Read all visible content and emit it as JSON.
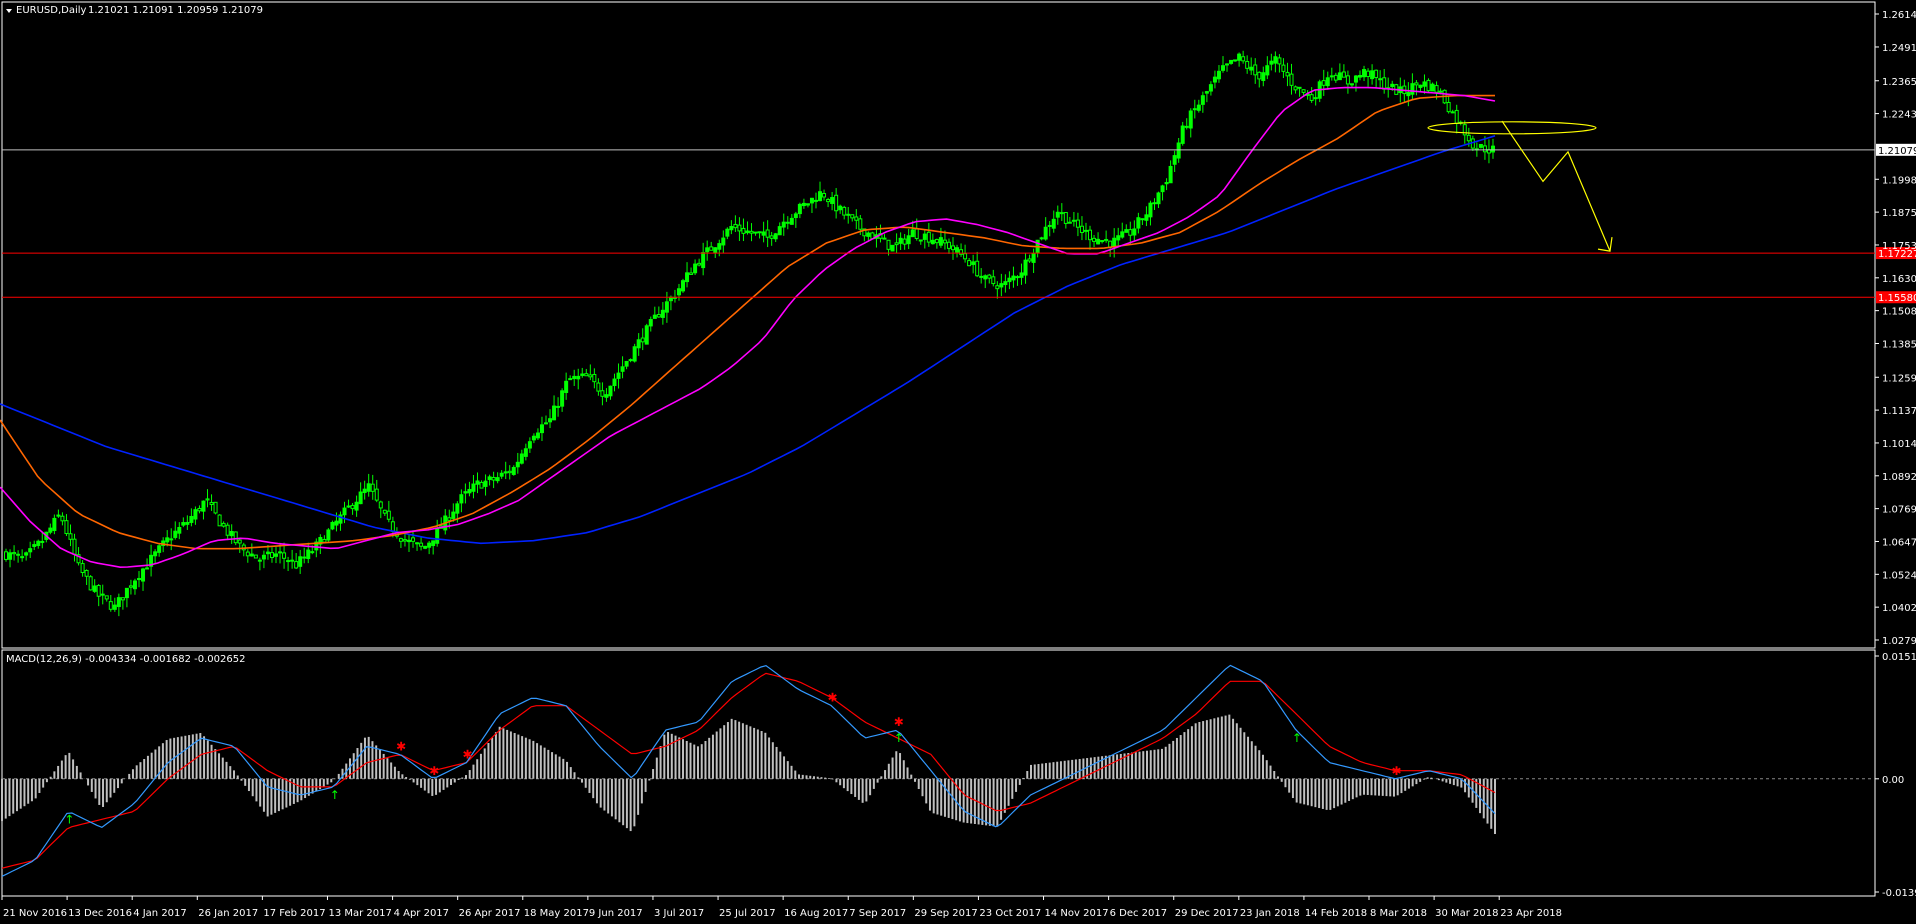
{
  "window": {
    "title": "EURUSD,Daily",
    "ohlc": "1.21021 1.21091 1.20959 1.21079"
  },
  "colors": {
    "background": "#000000",
    "frame": "#ffffff",
    "bull_candle": "#00ff00",
    "bear_candle": "#000000",
    "ma_fast": "#ff00ff",
    "ma_mid": "#ff6600",
    "ma_slow": "#0022ff",
    "horizontal_level": "#ff0000",
    "current_price_line": "#c0c0c0",
    "annotation": "#ffff00",
    "macd_line": "#3399ff",
    "signal_line": "#ff0000",
    "histogram": "#c0c0c0",
    "buy_arrow": "#00ff00",
    "sell_arrow": "#ff0000"
  },
  "chart_data": [
    {
      "type": "candlestick",
      "title": "EURUSD,Daily",
      "ylim": [
        1.02795,
        1.26145
      ],
      "y_ticks": [
        "1.26145",
        "1.24915",
        "1.23655",
        "1.22430",
        "1.19980",
        "1.18755",
        "1.17530",
        "1.16305",
        "1.15080",
        "1.13855",
        "1.12595",
        "1.11370",
        "1.10145",
        "1.08920",
        "1.07695",
        "1.06470",
        "1.05245",
        "1.04020",
        "1.02795"
      ],
      "x_ticks": [
        "21 Nov 2016",
        "13 Dec 2016",
        "4 Jan 2017",
        "26 Jan 2017",
        "17 Feb 2017",
        "13 Mar 2017",
        "4 Apr 2017",
        "26 Apr 2017",
        "18 May 2017",
        "9 Jun 2017",
        "3 Jul 2017",
        "25 Jul 2017",
        "16 Aug 2017",
        "7 Sep 2017",
        "29 Sep 2017",
        "23 Oct 2017",
        "14 Nov 2017",
        "6 Dec 2017",
        "29 Dec 2017",
        "23 Jan 2018",
        "14 Feb 2018",
        "8 Mar 2018",
        "30 Mar 2018",
        "23 Apr 2018"
      ],
      "close_path": [
        1.06,
        1.058,
        1.065,
        1.075,
        1.055,
        1.045,
        1.04,
        1.05,
        1.058,
        1.066,
        1.072,
        1.08,
        1.07,
        1.062,
        1.058,
        1.06,
        1.056,
        1.062,
        1.07,
        1.078,
        1.085,
        1.072,
        1.065,
        1.062,
        1.07,
        1.08,
        1.086,
        1.088,
        1.092,
        1.105,
        1.11,
        1.125,
        1.126,
        1.12,
        1.13,
        1.14,
        1.15,
        1.158,
        1.168,
        1.175,
        1.182,
        1.18,
        1.178,
        1.185,
        1.19,
        1.195,
        1.188,
        1.182,
        1.178,
        1.174,
        1.18,
        1.178,
        1.175,
        1.17,
        1.162,
        1.16,
        1.166,
        1.178,
        1.188,
        1.182,
        1.178,
        1.176,
        1.18,
        1.188,
        1.2,
        1.22,
        1.23,
        1.24,
        1.245,
        1.238,
        1.244,
        1.235,
        1.23,
        1.24,
        1.236,
        1.24,
        1.235,
        1.232,
        1.236,
        1.233,
        1.222,
        1.212,
        1.2108
      ],
      "ma_fast_path": [
        1.085,
        1.072,
        1.062,
        1.057,
        1.055,
        1.056,
        1.06,
        1.065,
        1.066,
        1.064,
        1.063,
        1.062,
        1.065,
        1.068,
        1.069,
        1.071,
        1.075,
        1.08,
        1.088,
        1.096,
        1.104,
        1.11,
        1.116,
        1.122,
        1.13,
        1.14,
        1.155,
        1.166,
        1.174,
        1.18,
        1.184,
        1.185,
        1.183,
        1.18,
        1.176,
        1.172,
        1.172,
        1.176,
        1.18,
        1.186,
        1.194,
        1.21,
        1.225,
        1.233,
        1.234,
        1.234,
        1.233,
        1.232,
        1.231,
        1.229
      ],
      "ma_mid_path": [
        1.11,
        1.088,
        1.075,
        1.068,
        1.064,
        1.062,
        1.062,
        1.063,
        1.064,
        1.065,
        1.067,
        1.07,
        1.075,
        1.083,
        1.092,
        1.103,
        1.115,
        1.128,
        1.141,
        1.154,
        1.167,
        1.176,
        1.181,
        1.182,
        1.18,
        1.178,
        1.175,
        1.174,
        1.174,
        1.176,
        1.18,
        1.188,
        1.198,
        1.207,
        1.215,
        1.225,
        1.23,
        1.231,
        1.231
      ],
      "ma_slow_path": [
        1.116,
        1.108,
        1.1,
        1.094,
        1.088,
        1.082,
        1.076,
        1.07,
        1.066,
        1.064,
        1.065,
        1.068,
        1.074,
        1.082,
        1.09,
        1.1,
        1.112,
        1.124,
        1.137,
        1.15,
        1.16,
        1.168,
        1.174,
        1.18,
        1.188,
        1.196,
        1.203,
        1.21,
        1.216
      ],
      "levels": [
        {
          "value": 1.17227,
          "label": "1.17227",
          "color": "#ff0000"
        },
        {
          "value": 1.1558,
          "label": "1.15580",
          "color": "#ff0000"
        },
        {
          "value": 1.21079,
          "label": "1.21079",
          "color": "#c0c0c0",
          "current": true
        }
      ],
      "annotations": {
        "ellipse_center_price": 1.219,
        "projection_path": [
          1.2215,
          1.199,
          1.21,
          1.173
        ]
      }
    },
    {
      "type": "macd",
      "title": "MACD(12,26,9) -0.004334 -0.001682 -0.002652",
      "ylim": [
        -0.01393,
        0.01511
      ],
      "y_ticks": [
        "0.01511",
        "0.00",
        "-0.01393"
      ],
      "macd_path": [
        -0.012,
        -0.01,
        -0.004,
        -0.006,
        -0.003,
        0.002,
        0.005,
        0.004,
        -0.001,
        -0.002,
        -0.001,
        0.004,
        0.003,
        0.0,
        0.002,
        0.008,
        0.01,
        0.009,
        0.004,
        0.0,
        0.006,
        0.007,
        0.012,
        0.014,
        0.011,
        0.009,
        0.005,
        0.006,
        0.001,
        -0.004,
        -0.006,
        -0.002,
        0.0,
        0.002,
        0.004,
        0.006,
        0.01,
        0.014,
        0.012,
        0.006,
        0.002,
        0.001,
        0.0,
        0.001,
        0.0,
        -0.0043
      ],
      "signal_path": [
        -0.011,
        -0.01,
        -0.006,
        -0.005,
        -0.004,
        0.0,
        0.003,
        0.004,
        0.001,
        -0.001,
        -0.001,
        0.002,
        0.003,
        0.001,
        0.002,
        0.006,
        0.009,
        0.009,
        0.006,
        0.003,
        0.004,
        0.006,
        0.01,
        0.013,
        0.012,
        0.01,
        0.007,
        0.005,
        0.003,
        -0.002,
        -0.004,
        -0.003,
        -0.001,
        0.001,
        0.003,
        0.005,
        0.008,
        0.012,
        0.012,
        0.008,
        0.004,
        0.002,
        0.001,
        0.001,
        0.0005,
        -0.0017
      ],
      "buy_signal_index": [
        2,
        10,
        27,
        39
      ],
      "sell_signal_index": [
        12,
        13,
        14,
        25,
        27,
        42
      ]
    }
  ]
}
